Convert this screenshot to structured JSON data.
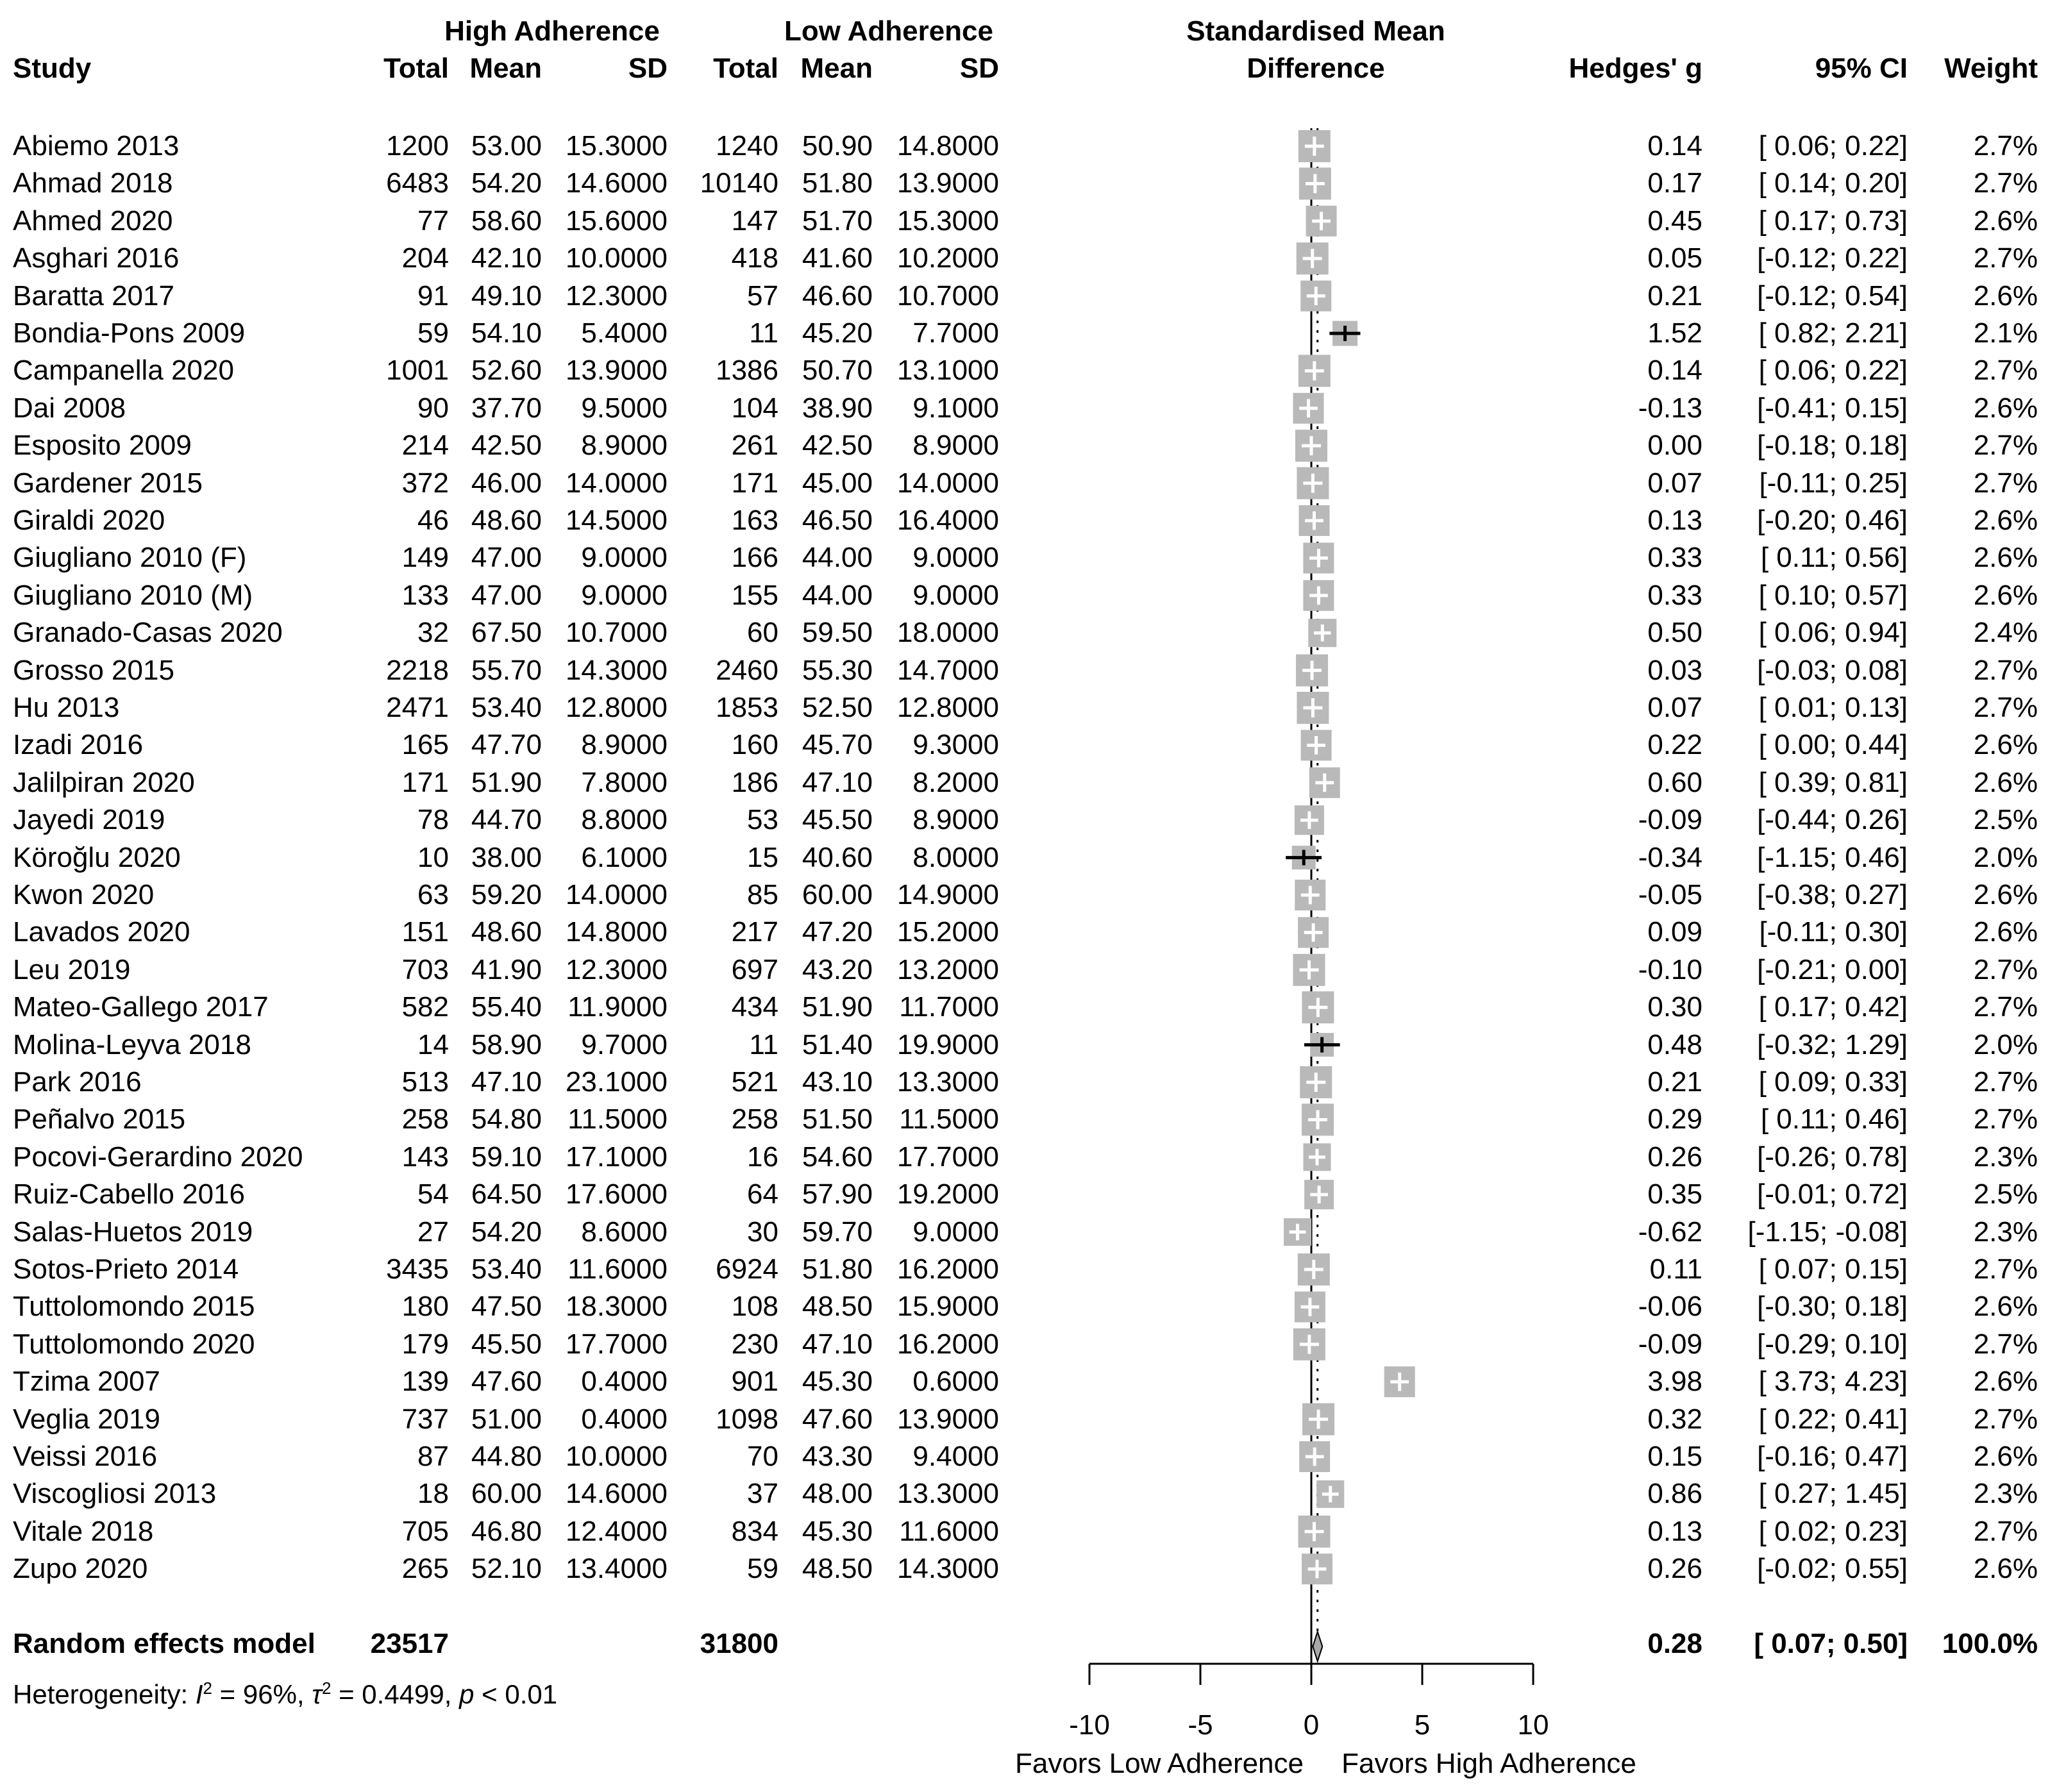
{
  "header": {
    "group_high": "High Adherence",
    "group_low": "Low Adherence",
    "smd_line1": "Standardised Mean",
    "smd_line2": "Difference",
    "study": "Study",
    "total": "Total",
    "mean": "Mean",
    "sd": "SD",
    "hedges_g": "Hedges' g",
    "ci": "95% CI",
    "weight": "Weight"
  },
  "studies": [
    {
      "name": "Abiemo 2013",
      "t1": "1200",
      "m1": "53.00",
      "s1": "15.3000",
      "t2": "1240",
      "m2": "50.90",
      "s2": "14.8000",
      "g": "0.14",
      "ci": "[ 0.06; 0.22]",
      "w": "2.7%",
      "ge": 0.14,
      "lo": 0.06,
      "hi": 0.22,
      "wt": 2.7
    },
    {
      "name": "Ahmad 2018",
      "t1": "6483",
      "m1": "54.20",
      "s1": "14.6000",
      "t2": "10140",
      "m2": "51.80",
      "s2": "13.9000",
      "g": "0.17",
      "ci": "[ 0.14; 0.20]",
      "w": "2.7%",
      "ge": 0.17,
      "lo": 0.14,
      "hi": 0.2,
      "wt": 2.7
    },
    {
      "name": "Ahmed 2020",
      "t1": "77",
      "m1": "58.60",
      "s1": "15.6000",
      "t2": "147",
      "m2": "51.70",
      "s2": "15.3000",
      "g": "0.45",
      "ci": "[ 0.17; 0.73]",
      "w": "2.6%",
      "ge": 0.45,
      "lo": 0.17,
      "hi": 0.73,
      "wt": 2.6
    },
    {
      "name": "Asghari 2016",
      "t1": "204",
      "m1": "42.10",
      "s1": "10.0000",
      "t2": "418",
      "m2": "41.60",
      "s2": "10.2000",
      "g": "0.05",
      "ci": "[-0.12; 0.22]",
      "w": "2.7%",
      "ge": 0.05,
      "lo": -0.12,
      "hi": 0.22,
      "wt": 2.7
    },
    {
      "name": "Baratta 2017",
      "t1": "91",
      "m1": "49.10",
      "s1": "12.3000",
      "t2": "57",
      "m2": "46.60",
      "s2": "10.7000",
      "g": "0.21",
      "ci": "[-0.12; 0.54]",
      "w": "2.6%",
      "ge": 0.21,
      "lo": -0.12,
      "hi": 0.54,
      "wt": 2.6
    },
    {
      "name": "Bondia-Pons 2009",
      "t1": "59",
      "m1": "54.10",
      "s1": "5.4000",
      "t2": "11",
      "m2": "45.20",
      "s2": "7.7000",
      "g": "1.52",
      "ci": "[ 0.82; 2.21]",
      "w": "2.1%",
      "ge": 1.52,
      "lo": 0.82,
      "hi": 2.21,
      "wt": 2.1
    },
    {
      "name": "Campanella 2020",
      "t1": "1001",
      "m1": "52.60",
      "s1": "13.9000",
      "t2": "1386",
      "m2": "50.70",
      "s2": "13.1000",
      "g": "0.14",
      "ci": "[ 0.06; 0.22]",
      "w": "2.7%",
      "ge": 0.14,
      "lo": 0.06,
      "hi": 0.22,
      "wt": 2.7
    },
    {
      "name": "Dai 2008",
      "t1": "90",
      "m1": "37.70",
      "s1": "9.5000",
      "t2": "104",
      "m2": "38.90",
      "s2": "9.1000",
      "g": "-0.13",
      "ci": "[-0.41; 0.15]",
      "w": "2.6%",
      "ge": -0.13,
      "lo": -0.41,
      "hi": 0.15,
      "wt": 2.6
    },
    {
      "name": "Esposito 2009",
      "t1": "214",
      "m1": "42.50",
      "s1": "8.9000",
      "t2": "261",
      "m2": "42.50",
      "s2": "8.9000",
      "g": "0.00",
      "ci": "[-0.18; 0.18]",
      "w": "2.7%",
      "ge": 0.0,
      "lo": -0.18,
      "hi": 0.18,
      "wt": 2.7
    },
    {
      "name": "Gardener 2015",
      "t1": "372",
      "m1": "46.00",
      "s1": "14.0000",
      "t2": "171",
      "m2": "45.00",
      "s2": "14.0000",
      "g": "0.07",
      "ci": "[-0.11; 0.25]",
      "w": "2.7%",
      "ge": 0.07,
      "lo": -0.11,
      "hi": 0.25,
      "wt": 2.7
    },
    {
      "name": "Giraldi 2020",
      "t1": "46",
      "m1": "48.60",
      "s1": "14.5000",
      "t2": "163",
      "m2": "46.50",
      "s2": "16.4000",
      "g": "0.13",
      "ci": "[-0.20; 0.46]",
      "w": "2.6%",
      "ge": 0.13,
      "lo": -0.2,
      "hi": 0.46,
      "wt": 2.6
    },
    {
      "name": "Giugliano 2010 (F)",
      "t1": "149",
      "m1": "47.00",
      "s1": "9.0000",
      "t2": "166",
      "m2": "44.00",
      "s2": "9.0000",
      "g": "0.33",
      "ci": "[ 0.11; 0.56]",
      "w": "2.6%",
      "ge": 0.33,
      "lo": 0.11,
      "hi": 0.56,
      "wt": 2.6
    },
    {
      "name": "Giugliano 2010 (M)",
      "t1": "133",
      "m1": "47.00",
      "s1": "9.0000",
      "t2": "155",
      "m2": "44.00",
      "s2": "9.0000",
      "g": "0.33",
      "ci": "[ 0.10; 0.57]",
      "w": "2.6%",
      "ge": 0.33,
      "lo": 0.1,
      "hi": 0.57,
      "wt": 2.6
    },
    {
      "name": "Granado-Casas 2020",
      "t1": "32",
      "m1": "67.50",
      "s1": "10.7000",
      "t2": "60",
      "m2": "59.50",
      "s2": "18.0000",
      "g": "0.50",
      "ci": "[ 0.06; 0.94]",
      "w": "2.4%",
      "ge": 0.5,
      "lo": 0.06,
      "hi": 0.94,
      "wt": 2.4
    },
    {
      "name": "Grosso 2015",
      "t1": "2218",
      "m1": "55.70",
      "s1": "14.3000",
      "t2": "2460",
      "m2": "55.30",
      "s2": "14.7000",
      "g": "0.03",
      "ci": "[-0.03; 0.08]",
      "w": "2.7%",
      "ge": 0.03,
      "lo": -0.03,
      "hi": 0.08,
      "wt": 2.7
    },
    {
      "name": "Hu 2013",
      "t1": "2471",
      "m1": "53.40",
      "s1": "12.8000",
      "t2": "1853",
      "m2": "52.50",
      "s2": "12.8000",
      "g": "0.07",
      "ci": "[ 0.01; 0.13]",
      "w": "2.7%",
      "ge": 0.07,
      "lo": 0.01,
      "hi": 0.13,
      "wt": 2.7
    },
    {
      "name": "Izadi 2016",
      "t1": "165",
      "m1": "47.70",
      "s1": "8.9000",
      "t2": "160",
      "m2": "45.70",
      "s2": "9.3000",
      "g": "0.22",
      "ci": "[ 0.00; 0.44]",
      "w": "2.6%",
      "ge": 0.22,
      "lo": 0.0,
      "hi": 0.44,
      "wt": 2.6
    },
    {
      "name": "Jalilpiran 2020",
      "t1": "171",
      "m1": "51.90",
      "s1": "7.8000",
      "t2": "186",
      "m2": "47.10",
      "s2": "8.2000",
      "g": "0.60",
      "ci": "[ 0.39; 0.81]",
      "w": "2.6%",
      "ge": 0.6,
      "lo": 0.39,
      "hi": 0.81,
      "wt": 2.6
    },
    {
      "name": "Jayedi 2019",
      "t1": "78",
      "m1": "44.70",
      "s1": "8.8000",
      "t2": "53",
      "m2": "45.50",
      "s2": "8.9000",
      "g": "-0.09",
      "ci": "[-0.44; 0.26]",
      "w": "2.5%",
      "ge": -0.09,
      "lo": -0.44,
      "hi": 0.26,
      "wt": 2.5
    },
    {
      "name": "Köroğlu 2020",
      "t1": "10",
      "m1": "38.00",
      "s1": "6.1000",
      "t2": "15",
      "m2": "40.60",
      "s2": "8.0000",
      "g": "-0.34",
      "ci": "[-1.15; 0.46]",
      "w": "2.0%",
      "ge": -0.34,
      "lo": -1.15,
      "hi": 0.46,
      "wt": 2.0
    },
    {
      "name": "Kwon 2020",
      "t1": "63",
      "m1": "59.20",
      "s1": "14.0000",
      "t2": "85",
      "m2": "60.00",
      "s2": "14.9000",
      "g": "-0.05",
      "ci": "[-0.38; 0.27]",
      "w": "2.6%",
      "ge": -0.05,
      "lo": -0.38,
      "hi": 0.27,
      "wt": 2.6
    },
    {
      "name": "Lavados 2020",
      "t1": "151",
      "m1": "48.60",
      "s1": "14.8000",
      "t2": "217",
      "m2": "47.20",
      "s2": "15.2000",
      "g": "0.09",
      "ci": "[-0.11; 0.30]",
      "w": "2.6%",
      "ge": 0.09,
      "lo": -0.11,
      "hi": 0.3,
      "wt": 2.6
    },
    {
      "name": "Leu 2019",
      "t1": "703",
      "m1": "41.90",
      "s1": "12.3000",
      "t2": "697",
      "m2": "43.20",
      "s2": "13.2000",
      "g": "-0.10",
      "ci": "[-0.21; 0.00]",
      "w": "2.7%",
      "ge": -0.1,
      "lo": -0.21,
      "hi": 0.0,
      "wt": 2.7
    },
    {
      "name": "Mateo-Gallego 2017",
      "t1": "582",
      "m1": "55.40",
      "s1": "11.9000",
      "t2": "434",
      "m2": "51.90",
      "s2": "11.7000",
      "g": "0.30",
      "ci": "[ 0.17; 0.42]",
      "w": "2.7%",
      "ge": 0.3,
      "lo": 0.17,
      "hi": 0.42,
      "wt": 2.7
    },
    {
      "name": "Molina-Leyva 2018",
      "t1": "14",
      "m1": "58.90",
      "s1": "9.7000",
      "t2": "11",
      "m2": "51.40",
      "s2": "19.9000",
      "g": "0.48",
      "ci": "[-0.32; 1.29]",
      "w": "2.0%",
      "ge": 0.48,
      "lo": -0.32,
      "hi": 1.29,
      "wt": 2.0
    },
    {
      "name": "Park 2016",
      "t1": "513",
      "m1": "47.10",
      "s1": "23.1000",
      "t2": "521",
      "m2": "43.10",
      "s2": "13.3000",
      "g": "0.21",
      "ci": "[ 0.09; 0.33]",
      "w": "2.7%",
      "ge": 0.21,
      "lo": 0.09,
      "hi": 0.33,
      "wt": 2.7
    },
    {
      "name": "Peñalvo 2015",
      "t1": "258",
      "m1": "54.80",
      "s1": "11.5000",
      "t2": "258",
      "m2": "51.50",
      "s2": "11.5000",
      "g": "0.29",
      "ci": "[ 0.11; 0.46]",
      "w": "2.7%",
      "ge": 0.29,
      "lo": 0.11,
      "hi": 0.46,
      "wt": 2.7
    },
    {
      "name": "Pocovi-Gerardino 2020",
      "t1": "143",
      "m1": "59.10",
      "s1": "17.1000",
      "t2": "16",
      "m2": "54.60",
      "s2": "17.7000",
      "g": "0.26",
      "ci": "[-0.26; 0.78]",
      "w": "2.3%",
      "ge": 0.26,
      "lo": -0.26,
      "hi": 0.78,
      "wt": 2.3
    },
    {
      "name": "Ruiz-Cabello 2016",
      "t1": "54",
      "m1": "64.50",
      "s1": "17.6000",
      "t2": "64",
      "m2": "57.90",
      "s2": "19.2000",
      "g": "0.35",
      "ci": "[-0.01; 0.72]",
      "w": "2.5%",
      "ge": 0.35,
      "lo": -0.01,
      "hi": 0.72,
      "wt": 2.5
    },
    {
      "name": "Salas-Huetos 2019",
      "t1": "27",
      "m1": "54.20",
      "s1": "8.6000",
      "t2": "30",
      "m2": "59.70",
      "s2": "9.0000",
      "g": "-0.62",
      "ci": "[-1.15; -0.08]",
      "w": "2.3%",
      "ge": -0.62,
      "lo": -1.15,
      "hi": -0.08,
      "wt": 2.3
    },
    {
      "name": "Sotos-Prieto 2014",
      "t1": "3435",
      "m1": "53.40",
      "s1": "11.6000",
      "t2": "6924",
      "m2": "51.80",
      "s2": "16.2000",
      "g": "0.11",
      "ci": "[ 0.07; 0.15]",
      "w": "2.7%",
      "ge": 0.11,
      "lo": 0.07,
      "hi": 0.15,
      "wt": 2.7
    },
    {
      "name": "Tuttolomondo 2015",
      "t1": "180",
      "m1": "47.50",
      "s1": "18.3000",
      "t2": "108",
      "m2": "48.50",
      "s2": "15.9000",
      "g": "-0.06",
      "ci": "[-0.30; 0.18]",
      "w": "2.6%",
      "ge": -0.06,
      "lo": -0.3,
      "hi": 0.18,
      "wt": 2.6
    },
    {
      "name": "Tuttolomondo 2020",
      "t1": "179",
      "m1": "45.50",
      "s1": "17.7000",
      "t2": "230",
      "m2": "47.10",
      "s2": "16.2000",
      "g": "-0.09",
      "ci": "[-0.29; 0.10]",
      "w": "2.7%",
      "ge": -0.09,
      "lo": -0.29,
      "hi": 0.1,
      "wt": 2.7
    },
    {
      "name": "Tzima 2007",
      "t1": "139",
      "m1": "47.60",
      "s1": "0.4000",
      "t2": "901",
      "m2": "45.30",
      "s2": "0.6000",
      "g": "3.98",
      "ci": "[ 3.73; 4.23]",
      "w": "2.6%",
      "ge": 3.98,
      "lo": 3.73,
      "hi": 4.23,
      "wt": 2.6
    },
    {
      "name": "Veglia 2019",
      "t1": "737",
      "m1": "51.00",
      "s1": "0.4000",
      "t2": "1098",
      "m2": "47.60",
      "s2": "13.9000",
      "g": "0.32",
      "ci": "[ 0.22; 0.41]",
      "w": "2.7%",
      "ge": 0.32,
      "lo": 0.22,
      "hi": 0.41,
      "wt": 2.7
    },
    {
      "name": "Veissi 2016",
      "t1": "87",
      "m1": "44.80",
      "s1": "10.0000",
      "t2": "70",
      "m2": "43.30",
      "s2": "9.4000",
      "g": "0.15",
      "ci": "[-0.16; 0.47]",
      "w": "2.6%",
      "ge": 0.15,
      "lo": -0.16,
      "hi": 0.47,
      "wt": 2.6
    },
    {
      "name": "Viscogliosi 2013",
      "t1": "18",
      "m1": "60.00",
      "s1": "14.6000",
      "t2": "37",
      "m2": "48.00",
      "s2": "13.3000",
      "g": "0.86",
      "ci": "[ 0.27; 1.45]",
      "w": "2.3%",
      "ge": 0.86,
      "lo": 0.27,
      "hi": 1.45,
      "wt": 2.3
    },
    {
      "name": "Vitale 2018",
      "t1": "705",
      "m1": "46.80",
      "s1": "12.4000",
      "t2": "834",
      "m2": "45.30",
      "s2": "11.6000",
      "g": "0.13",
      "ci": "[ 0.02; 0.23]",
      "w": "2.7%",
      "ge": 0.13,
      "lo": 0.02,
      "hi": 0.23,
      "wt": 2.7
    },
    {
      "name": "Zupo 2020",
      "t1": "265",
      "m1": "52.10",
      "s1": "13.4000",
      "t2": "59",
      "m2": "48.50",
      "s2": "14.3000",
      "g": "0.26",
      "ci": "[-0.02; 0.55]",
      "w": "2.6%",
      "ge": 0.26,
      "lo": -0.02,
      "hi": 0.55,
      "wt": 2.6
    }
  ],
  "summary": {
    "label": "Random effects model",
    "total_high": "23517",
    "total_low": "31800",
    "g": "0.28",
    "ci": "[ 0.07; 0.50]",
    "weight": "100.0%",
    "ge": 0.28,
    "lo": 0.07,
    "hi": 0.5
  },
  "heterogeneity": {
    "prefix": "Heterogeneity: ",
    "i_sym": "I",
    "i_exp": "2",
    "i_val": " = 96%, ",
    "tau_sym": "τ",
    "tau_exp": "2",
    "tau_val": " = 0.4499, ",
    "p_sym": "p",
    "p_val": " < 0.01"
  },
  "axis": {
    "ticks": [
      {
        "v": -10,
        "label": "-10"
      },
      {
        "v": -5,
        "label": "-5"
      },
      {
        "v": 0,
        "label": "0"
      },
      {
        "v": 5,
        "label": "5"
      },
      {
        "v": 10,
        "label": "10"
      }
    ],
    "favors_low": "Favors Low Adherence",
    "favors_high": "Favors High Adherence"
  },
  "colors": {
    "square": "#b9b9b9",
    "diamond_fill": "#a8a8a8",
    "line": "#000000",
    "cross": "#ffffff"
  },
  "chart_data": {
    "type": "forest",
    "title": "",
    "xlabel_left": "Favors Low Adherence",
    "xlabel_right": "Favors High Adherence",
    "xlim": [
      -10,
      10
    ],
    "x_ticks": [
      -10,
      -5,
      0,
      5,
      10
    ],
    "effect_measure": "Hedges' g (Standardised Mean Difference)",
    "points": [
      [
        "Abiemo 2013",
        0.14,
        0.06,
        0.22,
        2.7
      ],
      [
        "Ahmad 2018",
        0.17,
        0.14,
        0.2,
        2.7
      ],
      [
        "Ahmed 2020",
        0.45,
        0.17,
        0.73,
        2.6
      ],
      [
        "Asghari 2016",
        0.05,
        -0.12,
        0.22,
        2.7
      ],
      [
        "Baratta 2017",
        0.21,
        -0.12,
        0.54,
        2.6
      ],
      [
        "Bondia-Pons 2009",
        1.52,
        0.82,
        2.21,
        2.1
      ],
      [
        "Campanella 2020",
        0.14,
        0.06,
        0.22,
        2.7
      ],
      [
        "Dai 2008",
        -0.13,
        -0.41,
        0.15,
        2.6
      ],
      [
        "Esposito 2009",
        0.0,
        -0.18,
        0.18,
        2.7
      ],
      [
        "Gardener 2015",
        0.07,
        -0.11,
        0.25,
        2.7
      ],
      [
        "Giraldi 2020",
        0.13,
        -0.2,
        0.46,
        2.6
      ],
      [
        "Giugliano 2010 (F)",
        0.33,
        0.11,
        0.56,
        2.6
      ],
      [
        "Giugliano 2010 (M)",
        0.33,
        0.1,
        0.57,
        2.6
      ],
      [
        "Granado-Casas 2020",
        0.5,
        0.06,
        0.94,
        2.4
      ],
      [
        "Grosso 2015",
        0.03,
        -0.03,
        0.08,
        2.7
      ],
      [
        "Hu 2013",
        0.07,
        0.01,
        0.13,
        2.7
      ],
      [
        "Izadi 2016",
        0.22,
        0.0,
        0.44,
        2.6
      ],
      [
        "Jalilpiran 2020",
        0.6,
        0.39,
        0.81,
        2.6
      ],
      [
        "Jayedi 2019",
        -0.09,
        -0.44,
        0.26,
        2.5
      ],
      [
        "Köroğlu 2020",
        -0.34,
        -1.15,
        0.46,
        2.0
      ],
      [
        "Kwon 2020",
        -0.05,
        -0.38,
        0.27,
        2.6
      ],
      [
        "Lavados 2020",
        0.09,
        -0.11,
        0.3,
        2.6
      ],
      [
        "Leu 2019",
        -0.1,
        -0.21,
        0.0,
        2.7
      ],
      [
        "Mateo-Gallego 2017",
        0.3,
        0.17,
        0.42,
        2.7
      ],
      [
        "Molina-Leyva 2018",
        0.48,
        -0.32,
        1.29,
        2.0
      ],
      [
        "Park 2016",
        0.21,
        0.09,
        0.33,
        2.7
      ],
      [
        "Peñalvo 2015",
        0.29,
        0.11,
        0.46,
        2.7
      ],
      [
        "Pocovi-Gerardino 2020",
        0.26,
        -0.26,
        0.78,
        2.3
      ],
      [
        "Ruiz-Cabello 2016",
        0.35,
        -0.01,
        0.72,
        2.5
      ],
      [
        "Salas-Huetos 2019",
        -0.62,
        -1.15,
        -0.08,
        2.3
      ],
      [
        "Sotos-Prieto 2014",
        0.11,
        0.07,
        0.15,
        2.7
      ],
      [
        "Tuttolomondo 2015",
        -0.06,
        -0.3,
        0.18,
        2.6
      ],
      [
        "Tuttolomondo 2020",
        -0.09,
        -0.29,
        0.1,
        2.7
      ],
      [
        "Tzima 2007",
        3.98,
        3.73,
        4.23,
        2.6
      ],
      [
        "Veglia 2019",
        0.32,
        0.22,
        0.41,
        2.7
      ],
      [
        "Veissi 2016",
        0.15,
        -0.16,
        0.47,
        2.6
      ],
      [
        "Viscogliosi 2013",
        0.86,
        0.27,
        1.45,
        2.3
      ],
      [
        "Vitale 2018",
        0.13,
        0.02,
        0.23,
        2.7
      ],
      [
        "Zupo 2020",
        0.26,
        -0.02,
        0.55,
        2.6
      ]
    ],
    "summary_point": {
      "label": "Random effects model",
      "g": 0.28,
      "lo": 0.07,
      "hi": 0.5,
      "weight": 100.0
    },
    "heterogeneity": "I2 = 96%, tau2 = 0.4499, p < 0.01"
  }
}
